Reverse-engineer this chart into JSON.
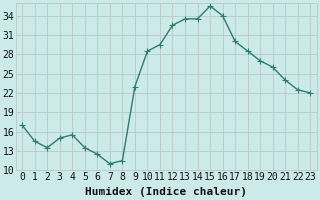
{
  "x": [
    0,
    1,
    2,
    3,
    4,
    5,
    6,
    7,
    8,
    9,
    10,
    11,
    12,
    13,
    14,
    15,
    16,
    17,
    18,
    19,
    20,
    21,
    22,
    23
  ],
  "y": [
    17,
    14.5,
    13.5,
    15,
    15.5,
    13.5,
    12.5,
    11,
    11.5,
    23,
    28.5,
    29.5,
    32.5,
    33.5,
    33.5,
    35.5,
    34,
    30,
    28.5,
    27,
    26,
    24,
    22.5,
    22
  ],
  "xlabel": "Humidex (Indice chaleur)",
  "ylim": [
    10,
    36
  ],
  "xlim": [
    -0.5,
    23.5
  ],
  "yticks": [
    10,
    13,
    16,
    19,
    22,
    25,
    28,
    31,
    34
  ],
  "xticks": [
    0,
    1,
    2,
    3,
    4,
    5,
    6,
    7,
    8,
    9,
    10,
    11,
    12,
    13,
    14,
    15,
    16,
    17,
    18,
    19,
    20,
    21,
    22,
    23
  ],
  "xtick_labels": [
    "0",
    "1",
    "2",
    "3",
    "4",
    "5",
    "6",
    "7",
    "8",
    "9",
    "10",
    "11",
    "12",
    "13",
    "14",
    "15",
    "16",
    "17",
    "18",
    "19",
    "20",
    "21",
    "22",
    "23"
  ],
  "line_color": "#2e7d6e",
  "marker_color": "#2e7d6e",
  "bg_color": "#cdeaea",
  "grid_color": "#b8c8c8",
  "font_color": "#111111",
  "xlabel_fontsize": 8,
  "tick_fontsize": 7,
  "linewidth": 1.0,
  "markersize": 2.5
}
